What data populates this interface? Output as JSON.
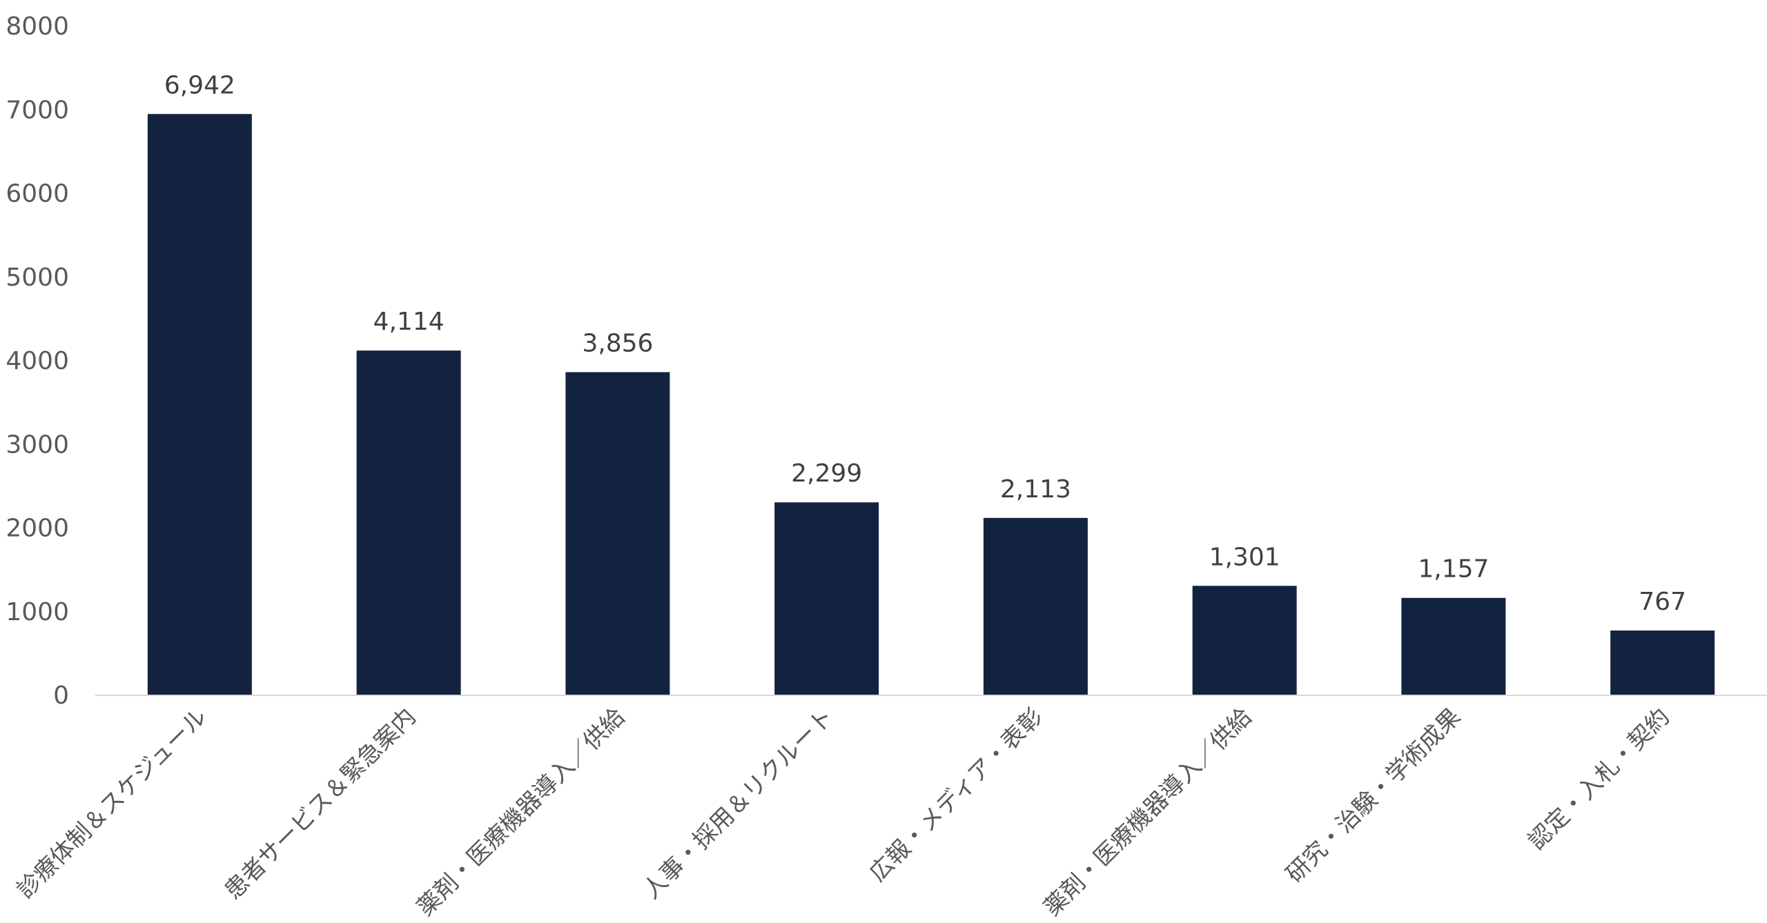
{
  "chart_data": {
    "type": "bar",
    "title": "",
    "xlabel": "",
    "ylabel": "",
    "categories": [
      "診療体制＆スケジュール",
      "患者サービス＆緊急案内",
      "薬剤・医療機器導入／供給",
      "人事・採用＆リクルート",
      "広報・メディア・表彰",
      "薬剤・医療機器導入／供給",
      "研究・治験・学術成果",
      "認定・入札・契約"
    ],
    "values": [
      6942,
      4114,
      3856,
      2299,
      2113,
      1301,
      1157,
      767
    ],
    "value_labels": [
      "6,942",
      "4,114",
      "3,856",
      "2,299",
      "2,113",
      "1,301",
      "1,157",
      "767"
    ],
    "ylim": [
      0,
      8000
    ],
    "yticks": [
      "0",
      "1000",
      "2000",
      "3000",
      "4000",
      "5000",
      "6000",
      "7000",
      "8000"
    ],
    "grid": false,
    "legend": "none",
    "bar_color": "#13233f",
    "axis_color": "#d9d9d9"
  }
}
